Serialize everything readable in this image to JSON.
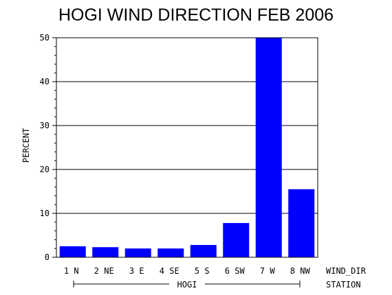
{
  "chart_data": {
    "type": "bar",
    "title": "HOGI WIND DIRECTION FEB 2006",
    "ylabel": "PERCENT",
    "xlabel": "WIND_DIR",
    "group_label": "HOGI",
    "group_axis_label": "STATION",
    "categories": [
      "1 N",
      "2 NE",
      "3 E",
      "4 SE",
      "5 S",
      "6 SW",
      "7 W",
      "8 NW"
    ],
    "values": [
      2.5,
      2.3,
      2.0,
      2.0,
      2.8,
      7.8,
      50.0,
      15.5
    ],
    "ylim": [
      0,
      50
    ],
    "yticks": [
      0,
      10,
      20,
      30,
      40,
      50
    ],
    "grid": true,
    "bar_color": "#0000ff"
  }
}
